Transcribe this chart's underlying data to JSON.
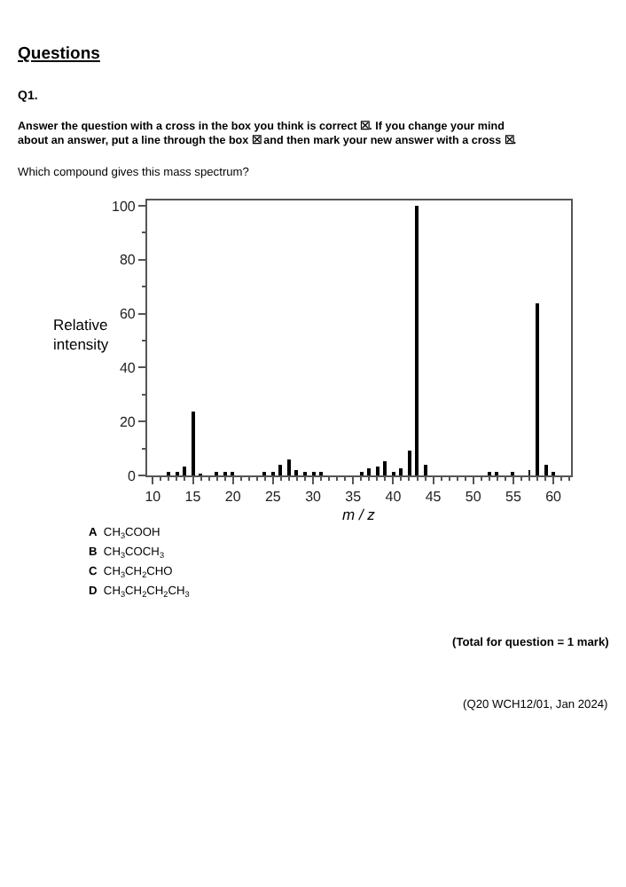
{
  "chart_data": {
    "type": "bar",
    "xlabel": "m / z",
    "ylabel": "Relative intensity",
    "x": [
      12,
      13,
      14,
      15,
      16,
      18,
      19,
      20,
      24,
      25,
      26,
      27,
      28,
      29,
      30,
      31,
      36,
      37,
      38,
      39,
      40,
      41,
      42,
      43,
      44,
      52,
      53,
      55,
      57,
      58,
      59,
      60
    ],
    "values": [
      1,
      1,
      3.5,
      24,
      0.5,
      1,
      1,
      1,
      1,
      1,
      4,
      6,
      2,
      1,
      1,
      1,
      1,
      2.5,
      3,
      5,
      1.5,
      2.5,
      9.5,
      100,
      4,
      1,
      1,
      1,
      2,
      64,
      4,
      1
    ],
    "color": "#000000",
    "xlim": [
      9.3,
      62.2
    ],
    "xticks": [
      10,
      15,
      20,
      25,
      30,
      35,
      40,
      45,
      50,
      55,
      60
    ],
    "ylim": [
      0,
      102
    ],
    "yticks": [
      0,
      20,
      40,
      60,
      80,
      100
    ],
    "annotations": [
      "Questions",
      "Q1.",
      "Answer the question with a cross in the box you think is correct ☒. If you change your mind\nabout an answer, put a line through the box ☒ and then mark your new answer with a cross ☒.",
      "Which compound gives this mass spectrum?",
      "A  CH$_{3}$COOH",
      "B  CH$_{3}$COCH$_{3}$",
      "C  CH$_{3}$CH$_{2}$CHO",
      "D  CH$_{3}$CH$_{2}$CH$_{2}$CH$_{3}$",
      "(Total for question = 1 mark)",
      "(Q20 WCH12/01, Jan 2024)"
    ]
  }
}
